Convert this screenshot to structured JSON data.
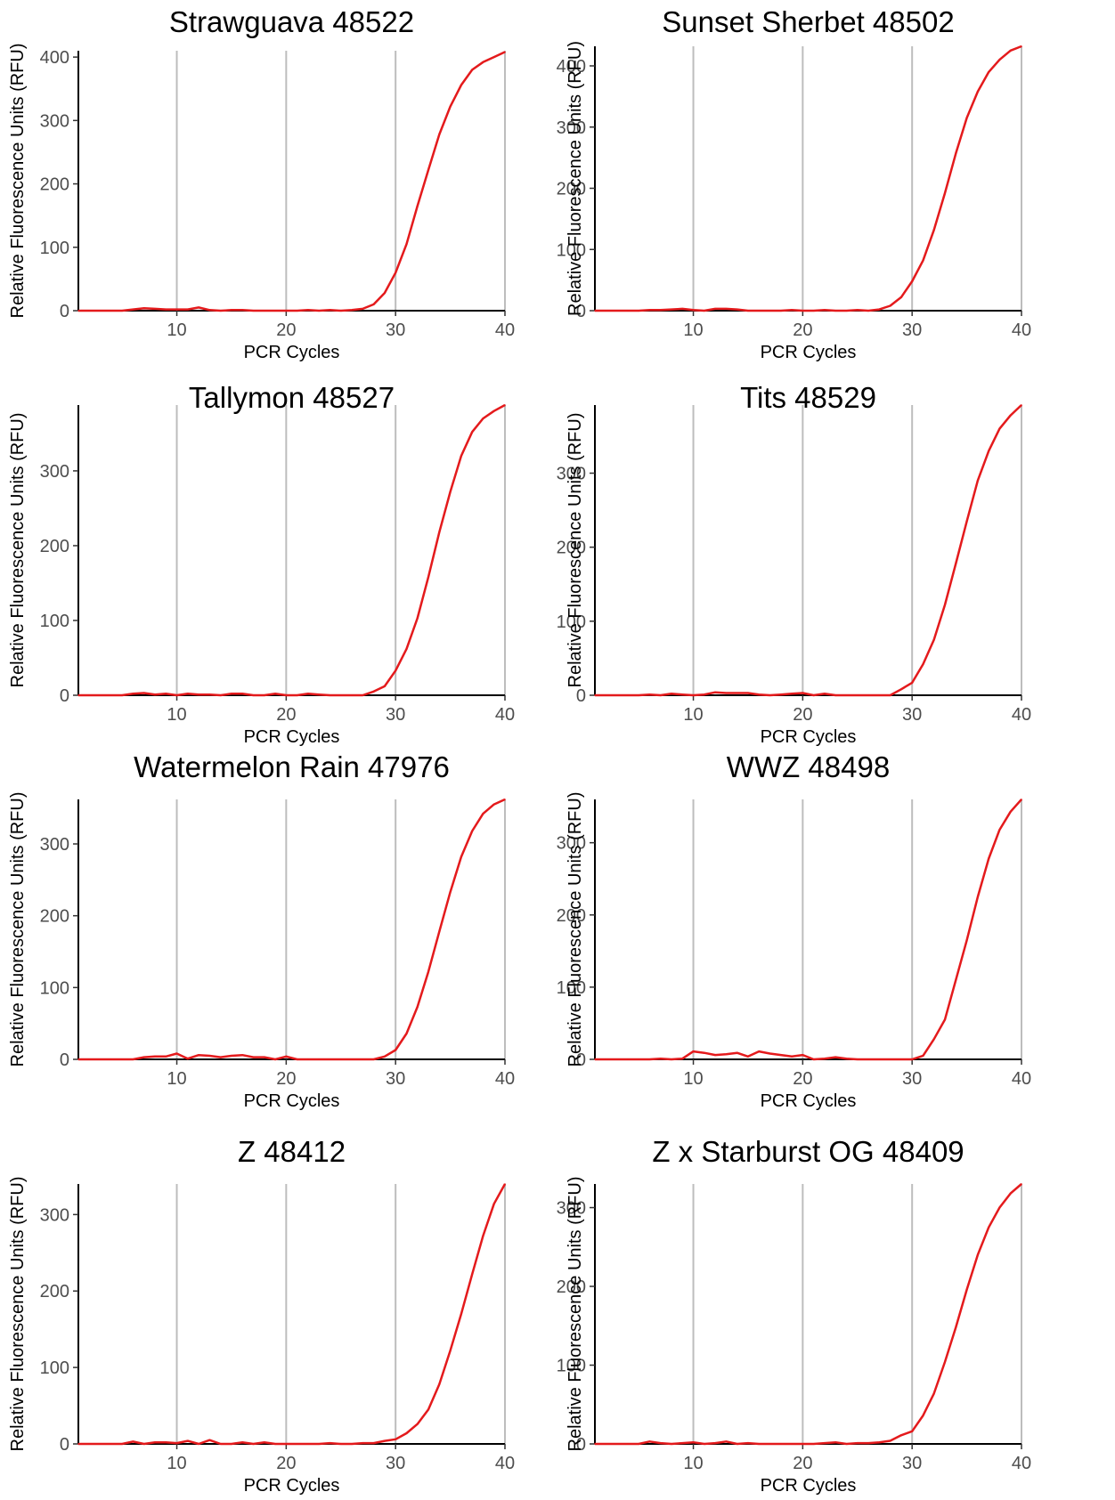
{
  "chart_data": [
    {
      "type": "line",
      "title": "Strawguava 48522",
      "xlabel": "PCR Cycles",
      "ylabel": "Relative Fluorescence Units (RFU)",
      "xlim": [
        1,
        40
      ],
      "ylim": [
        0,
        410
      ],
      "xticks": [
        10,
        20,
        30,
        40
      ],
      "yticks": [
        0,
        100,
        200,
        300,
        400
      ],
      "grid": "vertical",
      "color": "#e41a1c",
      "x": [
        1,
        2,
        3,
        4,
        5,
        6,
        7,
        8,
        9,
        10,
        11,
        12,
        13,
        14,
        15,
        16,
        17,
        18,
        19,
        20,
        21,
        22,
        23,
        24,
        25,
        26,
        27,
        28,
        29,
        30,
        31,
        32,
        33,
        34,
        35,
        36,
        37,
        38,
        39,
        40
      ],
      "y": [
        0,
        0,
        0,
        0,
        0,
        2,
        4,
        3,
        2,
        2,
        2,
        5,
        1,
        0,
        1,
        1,
        0,
        0,
        0,
        0,
        0,
        1,
        0,
        1,
        0,
        1,
        3,
        10,
        28,
        60,
        105,
        165,
        222,
        278,
        322,
        356,
        380,
        392,
        400,
        408
      ]
    },
    {
      "type": "line",
      "title": "Sunset Sherbet 48502",
      "xlabel": "PCR Cycles",
      "ylabel": "Relative Fluorescence Units (RFU)",
      "xlim": [
        1,
        40
      ],
      "ylim": [
        0,
        432
      ],
      "xticks": [
        10,
        20,
        30,
        40
      ],
      "yticks": [
        0,
        100,
        200,
        300,
        400
      ],
      "grid": "vertical",
      "color": "#e41a1c",
      "x": [
        1,
        2,
        3,
        4,
        5,
        6,
        7,
        8,
        9,
        10,
        11,
        12,
        13,
        14,
        15,
        16,
        17,
        18,
        19,
        20,
        21,
        22,
        23,
        24,
        25,
        26,
        27,
        28,
        29,
        30,
        31,
        32,
        33,
        34,
        35,
        36,
        37,
        38,
        39,
        40
      ],
      "y": [
        0,
        0,
        0,
        0,
        0,
        1,
        1,
        2,
        3,
        1,
        0,
        3,
        3,
        2,
        0,
        0,
        0,
        0,
        1,
        0,
        0,
        1,
        0,
        0,
        1,
        0,
        2,
        8,
        22,
        48,
        82,
        132,
        192,
        257,
        315,
        358,
        390,
        410,
        425,
        432
      ]
    },
    {
      "type": "line",
      "title": "Tallymon 48527",
      "xlabel": "PCR Cycles",
      "ylabel": "Relative Fluorescence Units (RFU)",
      "xlim": [
        1,
        40
      ],
      "ylim": [
        0,
        388
      ],
      "xticks": [
        10,
        20,
        30,
        40
      ],
      "yticks": [
        0,
        100,
        200,
        300
      ],
      "grid": "vertical",
      "color": "#e41a1c",
      "x": [
        1,
        2,
        3,
        4,
        5,
        6,
        7,
        8,
        9,
        10,
        11,
        12,
        13,
        14,
        15,
        16,
        17,
        18,
        19,
        20,
        21,
        22,
        23,
        24,
        25,
        26,
        27,
        28,
        29,
        30,
        31,
        32,
        33,
        34,
        35,
        36,
        37,
        38,
        39,
        40
      ],
      "y": [
        0,
        0,
        0,
        0,
        0,
        2,
        3,
        1,
        2,
        0,
        2,
        1,
        1,
        0,
        2,
        2,
        0,
        0,
        2,
        0,
        0,
        2,
        1,
        0,
        0,
        0,
        0,
        5,
        12,
        33,
        62,
        103,
        158,
        218,
        272,
        320,
        352,
        370,
        380,
        388
      ]
    },
    {
      "type": "line",
      "title": "Tits 48529",
      "xlabel": "PCR Cycles",
      "ylabel": "Relative Fluorescence Units (RFU)",
      "xlim": [
        1,
        40
      ],
      "ylim": [
        0,
        392
      ],
      "xticks": [
        10,
        20,
        30,
        40
      ],
      "yticks": [
        0,
        100,
        200,
        300
      ],
      "grid": "vertical",
      "color": "#e41a1c",
      "x": [
        1,
        2,
        3,
        4,
        5,
        6,
        7,
        8,
        9,
        10,
        11,
        12,
        13,
        14,
        15,
        16,
        17,
        18,
        19,
        20,
        21,
        22,
        23,
        24,
        25,
        26,
        27,
        28,
        29,
        30,
        31,
        32,
        33,
        34,
        35,
        36,
        37,
        38,
        39,
        40
      ],
      "y": [
        0,
        0,
        0,
        0,
        0,
        1,
        0,
        2,
        1,
        0,
        1,
        4,
        3,
        3,
        3,
        1,
        0,
        1,
        2,
        3,
        0,
        2,
        0,
        0,
        0,
        0,
        0,
        0,
        8,
        17,
        42,
        75,
        122,
        178,
        235,
        290,
        330,
        360,
        378,
        392
      ]
    },
    {
      "type": "line",
      "title": "Watermelon Rain 47976",
      "xlabel": "PCR Cycles",
      "ylabel": "Relative Fluorescence Units (RFU)",
      "xlim": [
        1,
        40
      ],
      "ylim": [
        0,
        362
      ],
      "xticks": [
        10,
        20,
        30,
        40
      ],
      "yticks": [
        0,
        100,
        200,
        300
      ],
      "grid": "vertical",
      "color": "#e41a1c",
      "x": [
        1,
        2,
        3,
        4,
        5,
        6,
        7,
        8,
        9,
        10,
        11,
        12,
        13,
        14,
        15,
        16,
        17,
        18,
        19,
        20,
        21,
        22,
        23,
        24,
        25,
        26,
        27,
        28,
        29,
        30,
        31,
        32,
        33,
        34,
        35,
        36,
        37,
        38,
        39,
        40
      ],
      "y": [
        0,
        0,
        0,
        0,
        0,
        0,
        3,
        4,
        4,
        8,
        1,
        6,
        5,
        3,
        5,
        6,
        3,
        3,
        0,
        4,
        0,
        0,
        0,
        0,
        0,
        0,
        0,
        0,
        4,
        13,
        36,
        73,
        122,
        178,
        233,
        282,
        318,
        342,
        355,
        362
      ]
    },
    {
      "type": "line",
      "title": "WWZ 48498",
      "xlabel": "PCR Cycles",
      "ylabel": "Relative Fluorescence Units (RFU)",
      "xlim": [
        1,
        40
      ],
      "ylim": [
        0,
        360
      ],
      "xticks": [
        10,
        20,
        30,
        40
      ],
      "yticks": [
        0,
        100,
        200,
        300
      ],
      "grid": "vertical",
      "color": "#e41a1c",
      "x": [
        1,
        2,
        3,
        4,
        5,
        6,
        7,
        8,
        9,
        10,
        11,
        12,
        13,
        14,
        15,
        16,
        17,
        18,
        19,
        20,
        21,
        22,
        23,
        24,
        25,
        26,
        27,
        28,
        29,
        30,
        31,
        32,
        33,
        34,
        35,
        36,
        37,
        38,
        39,
        40
      ],
      "y": [
        0,
        0,
        0,
        0,
        0,
        0,
        1,
        0,
        1,
        11,
        9,
        6,
        7,
        9,
        4,
        11,
        8,
        6,
        4,
        6,
        0,
        1,
        3,
        1,
        0,
        0,
        0,
        0,
        0,
        0,
        5,
        28,
        55,
        110,
        165,
        225,
        278,
        318,
        343,
        360
      ]
    },
    {
      "type": "line",
      "title": "Z 48412",
      "xlabel": "PCR Cycles",
      "ylabel": "Relative Fluorescence Units (RFU)",
      "xlim": [
        1,
        40
      ],
      "ylim": [
        0,
        340
      ],
      "xticks": [
        10,
        20,
        30,
        40
      ],
      "yticks": [
        0,
        100,
        200,
        300
      ],
      "grid": "vertical",
      "color": "#e41a1c",
      "x": [
        1,
        2,
        3,
        4,
        5,
        6,
        7,
        8,
        9,
        10,
        11,
        12,
        13,
        14,
        15,
        16,
        17,
        18,
        19,
        20,
        21,
        22,
        23,
        24,
        25,
        26,
        27,
        28,
        29,
        30,
        31,
        32,
        33,
        34,
        35,
        36,
        37,
        38,
        39,
        40
      ],
      "y": [
        0,
        0,
        0,
        0,
        0,
        3,
        0,
        2,
        2,
        1,
        4,
        0,
        5,
        0,
        0,
        2,
        0,
        2,
        0,
        0,
        0,
        0,
        0,
        1,
        0,
        0,
        1,
        1,
        4,
        6,
        14,
        26,
        45,
        78,
        122,
        170,
        222,
        272,
        314,
        340
      ]
    },
    {
      "type": "line",
      "title": "Z x Starburst OG 48409",
      "xlabel": "PCR Cycles",
      "ylabel": "Relative Fluorescence Units (RFU)",
      "xlim": [
        1,
        40
      ],
      "ylim": [
        0,
        330
      ],
      "xticks": [
        10,
        20,
        30,
        40
      ],
      "yticks": [
        0,
        100,
        200,
        300
      ],
      "grid": "vertical",
      "color": "#e41a1c",
      "x": [
        1,
        2,
        3,
        4,
        5,
        6,
        7,
        8,
        9,
        10,
        11,
        12,
        13,
        14,
        15,
        16,
        17,
        18,
        19,
        20,
        21,
        22,
        23,
        24,
        25,
        26,
        27,
        28,
        29,
        30,
        31,
        32,
        33,
        34,
        35,
        36,
        37,
        38,
        39,
        40
      ],
      "y": [
        0,
        0,
        0,
        0,
        0,
        3,
        1,
        0,
        1,
        2,
        0,
        1,
        3,
        0,
        1,
        0,
        0,
        0,
        0,
        0,
        0,
        1,
        2,
        0,
        1,
        1,
        2,
        4,
        11,
        16,
        36,
        64,
        104,
        148,
        196,
        240,
        275,
        300,
        318,
        330
      ]
    }
  ]
}
